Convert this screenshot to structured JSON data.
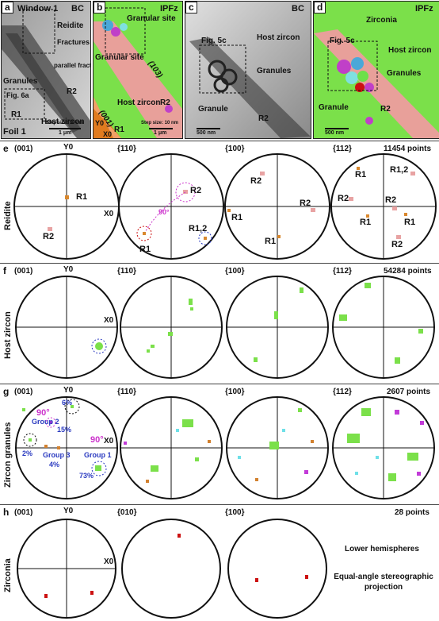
{
  "panels": {
    "a": {
      "letter": "a",
      "title": "Window 1",
      "mode": "BC",
      "labels": [
        "Reidite",
        "Fractures",
        "parallel fractures",
        "Granules",
        "R2",
        "Fig. 6a",
        "R1",
        "Host zircon",
        "Foil 1"
      ],
      "step": "Step size: 10 nm",
      "scale": "1 μm"
    },
    "b": {
      "letter": "b",
      "mode": "IPFz",
      "labels": [
        "Granular site",
        "Granular site",
        "(103)",
        "Host zircon",
        "R2",
        "(001)",
        "R1",
        "Y0",
        "X0"
      ],
      "step": "Step size: 10 nm",
      "scale": "1 μm"
    },
    "c": {
      "letter": "c",
      "mode": "BC",
      "labels": [
        "Fig. 5c",
        "Host zircon",
        "Granules",
        "Granule",
        "R2"
      ],
      "scale": "500 nm"
    },
    "d": {
      "letter": "d",
      "mode": "IPFz",
      "labels": [
        "Zirconia",
        "Fig. 5c",
        "Host zircon",
        "Granules",
        "Granule",
        "R2"
      ],
      "scale": "500 nm"
    }
  },
  "rows": [
    {
      "letter": "e",
      "name": "Reidite",
      "points": "11454 points",
      "poles": [
        "(001)",
        "{110}",
        "{100}",
        "{112}"
      ],
      "axis_y": "Y0",
      "axis_x": "X0",
      "notes": {
        "p0": [
          "R1",
          "R2"
        ],
        "p1": [
          "R2",
          "90°",
          "R1",
          "R1,2"
        ],
        "p2": [
          "R2",
          "R2",
          "R1",
          "R1"
        ],
        "p3": [
          "R1",
          "R1,2",
          "R2",
          "R2",
          "R1",
          "R1",
          "R2"
        ]
      }
    },
    {
      "letter": "f",
      "name": "Host zircon",
      "points": "54284 points",
      "poles": [
        "(001)",
        "{110}",
        "{100}",
        "{112}"
      ],
      "axis_y": "Y0",
      "axis_x": "X0"
    },
    {
      "letter": "g",
      "name": "Zircon granules",
      "points": "2607 points",
      "poles": [
        "(001)",
        "{110}",
        "{100}",
        "{112}"
      ],
      "axis_y": "Y0",
      "axis_x": "X0",
      "notes": {
        "p0": [
          "90°",
          "Group 2",
          "6%",
          "15%",
          "90°",
          "Group 3",
          "4%",
          "Group 1",
          "2%",
          "73%"
        ]
      }
    },
    {
      "letter": "h",
      "name": "Zirconia",
      "points": "28 points",
      "poles": [
        "(001)",
        "{010}",
        "{100}"
      ],
      "axis_y": "Y0",
      "axis_x": "X0",
      "legend": [
        "Lower hemispheres",
        "Equal-angle stereographic projection"
      ]
    }
  ],
  "colors": {
    "reidite": "#e8a09a",
    "host": "#7be04a",
    "r1_dot": "#d9882e",
    "r2_dot": "#e8a3a3",
    "granule_green": "#6ee04a",
    "granule_magenta": "#c23bd8",
    "granule_cyan": "#6fe0e8",
    "granule_orange": "#d2812f",
    "zirconia": "#cc1111",
    "circle_blue": "#2a3ac0",
    "circle_red": "#cc1111",
    "dashed_magenta": "#cc33cc"
  }
}
